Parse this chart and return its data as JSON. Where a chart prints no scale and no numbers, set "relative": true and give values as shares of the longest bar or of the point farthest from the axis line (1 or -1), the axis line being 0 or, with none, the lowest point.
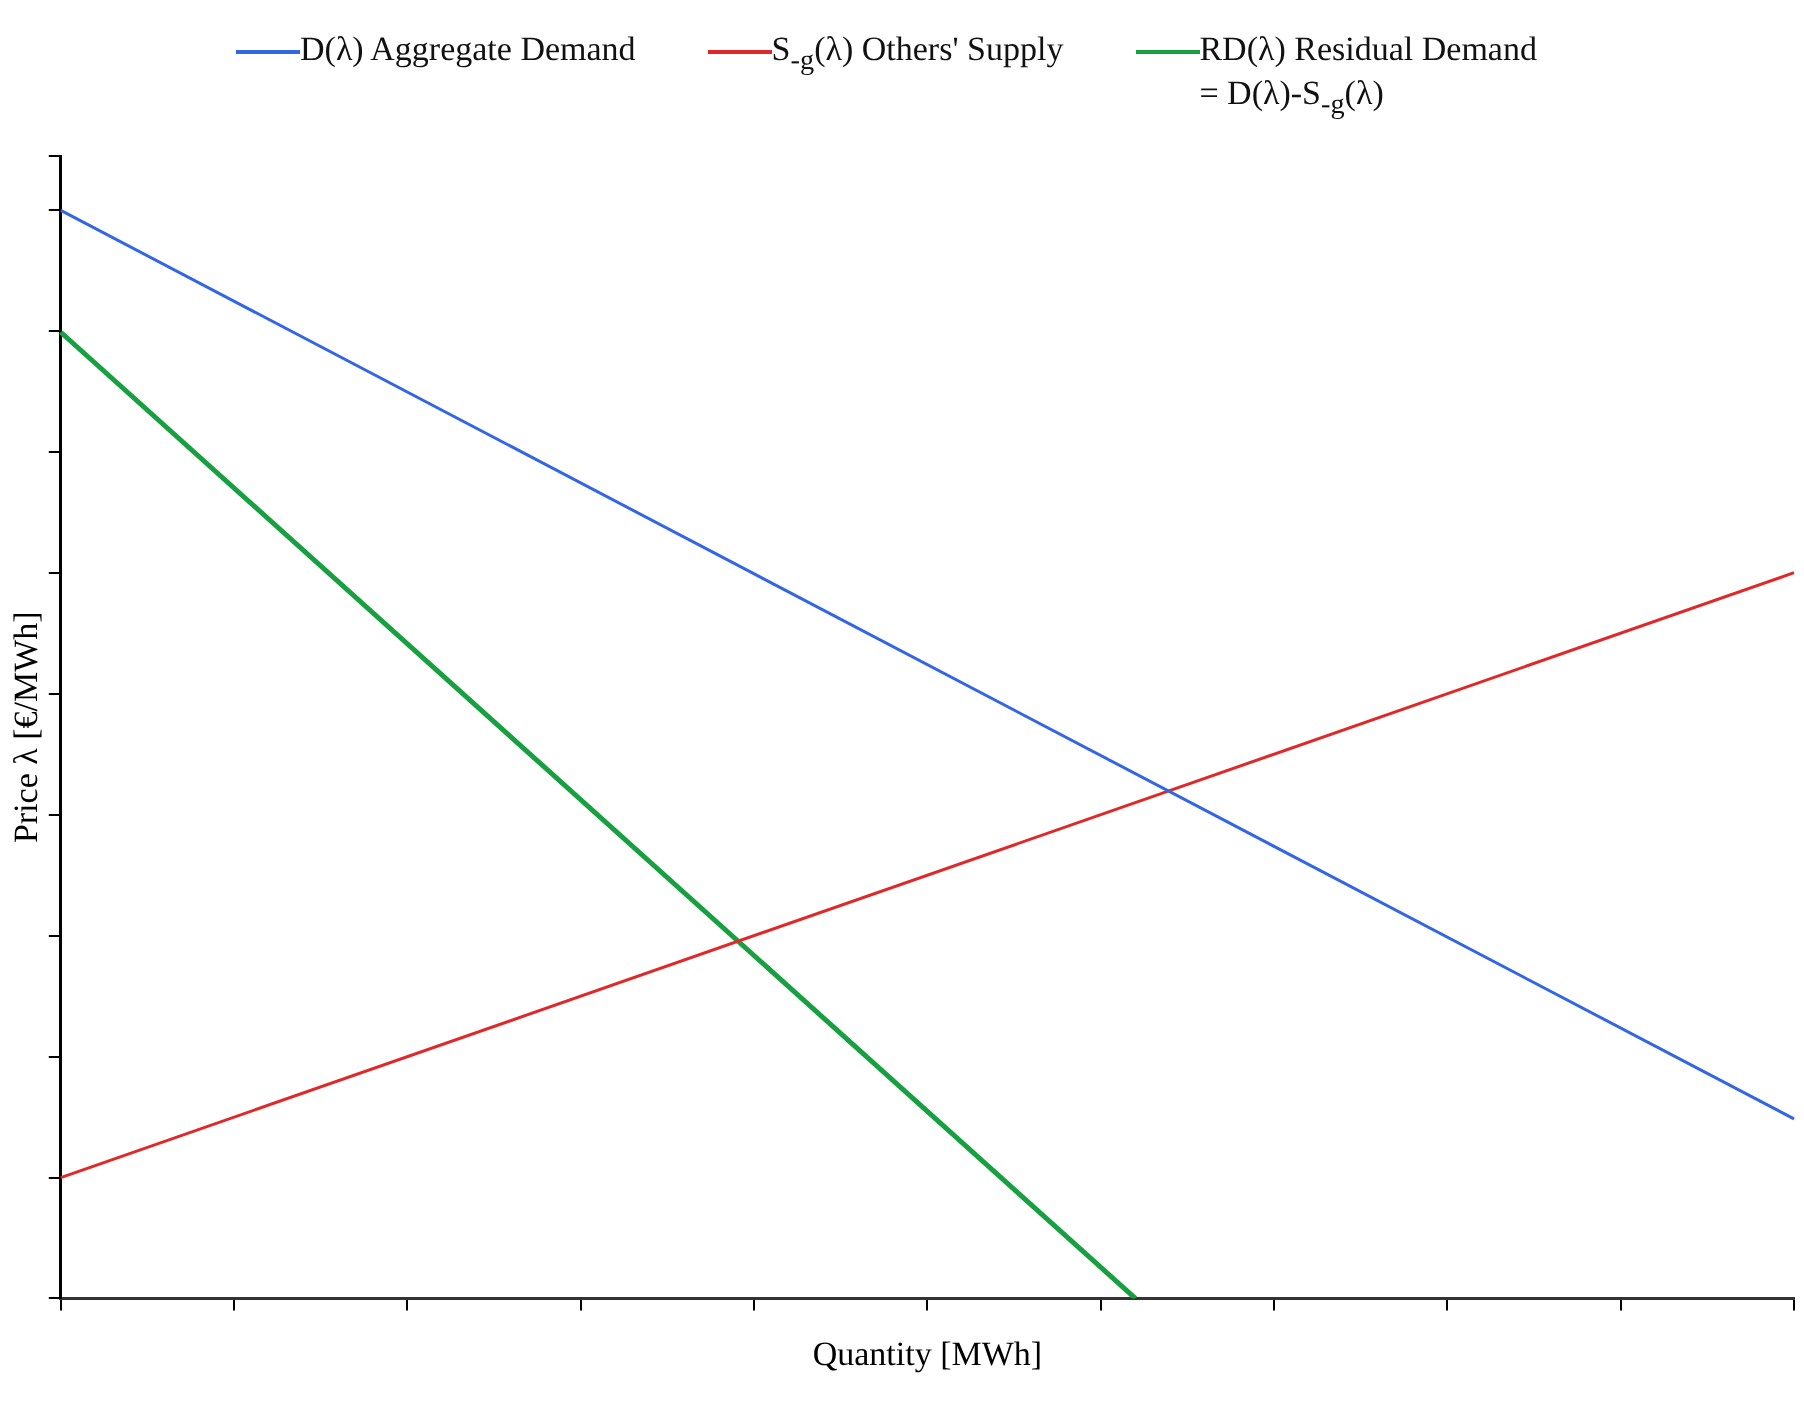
{
  "chart_data": {
    "type": "line",
    "relative": true,
    "xlabel": "Quantity [MWh]",
    "ylabel": "Price λ [€/MWh]",
    "categories": [
      null,
      null,
      null,
      null,
      null,
      null,
      null,
      null,
      null,
      null,
      null,
      null,
      null,
      null,
      null,
      null,
      null,
      null,
      null,
      null,
      null,
      null,
      null,
      null,
      null,
      null,
      null,
      null,
      null,
      null,
      null,
      null,
      null,
      null,
      null,
      null,
      null,
      null,
      null,
      null,
      null,
      null,
      null,
      null,
      null,
      null,
      null,
      null,
      null,
      null,
      null
    ],
    "legend": "top",
    "series": [
      {
        "name": "D(λ) Aggregate Demand",
        "color": "#3366e6",
        "values": [
          1,
          null,
          null,
          null,
          null,
          null,
          null,
          null,
          null,
          null,
          null,
          null,
          null,
          null,
          null,
          null,
          null,
          null,
          null,
          null,
          null,
          null,
          null,
          null,
          null,
          null,
          null,
          null,
          null,
          null,
          null,
          null,
          null,
          null,
          null,
          null,
          null,
          null,
          null,
          null,
          null,
          null,
          null,
          null,
          null,
          null,
          null,
          null,
          null,
          null,
          0.165
        ]
      },
      {
        "name": "S$_{-g}$(λ) Others' Supply",
        "color": "#e02828",
        "values": [
          0.111,
          null,
          null,
          null,
          null,
          null,
          null,
          null,
          null,
          null,
          null,
          null,
          null,
          null,
          null,
          null,
          null,
          null,
          null,
          null,
          null,
          null,
          null,
          null,
          null,
          null,
          null,
          null,
          null,
          null,
          null,
          null,
          null,
          null,
          null,
          null,
          null,
          null,
          null,
          null,
          null,
          null,
          null,
          null,
          null,
          null,
          null,
          null,
          null,
          null,
          0.667
        ]
      },
      {
        "name": "RD(λ)  Residual Demand = D(λ)-S$_{-g}$(λ)",
        "color": "#16a040",
        "values": [
          0.888,
          null,
          null,
          null,
          null,
          null,
          null,
          null,
          null,
          null,
          null,
          null,
          null,
          null,
          null,
          null,
          null,
          null,
          null,
          null,
          null,
          null,
          null,
          null,
          null,
          null,
          null,
          null,
          null,
          null,
          null,
          0,
          null,
          null,
          null,
          null,
          null,
          null,
          null,
          null,
          null,
          null,
          null,
          null,
          null,
          null,
          null,
          null,
          null,
          null,
          null
        ]
      }
    ]
  }
}
